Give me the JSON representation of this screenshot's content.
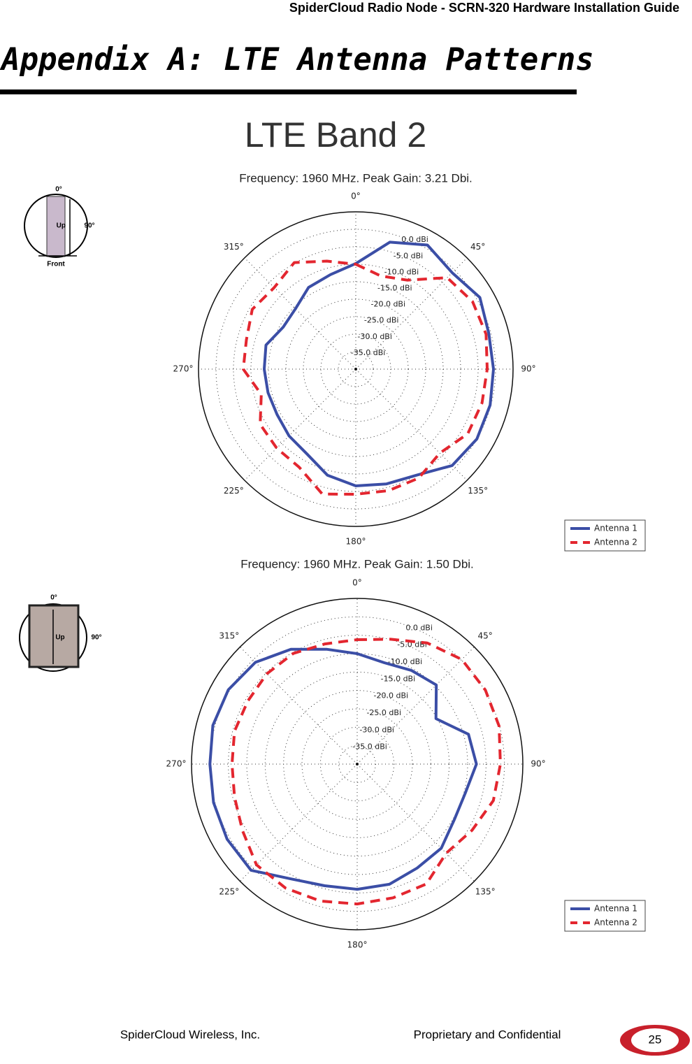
{
  "header": {
    "running_title": "SpiderCloud Radio Node - SCRN-320 Hardware Installation Guide",
    "heading": "Appendix A: LTE Antenna Patterns"
  },
  "section_title": "LTE Band 2",
  "icons": [
    {
      "top": "0°",
      "right": "90°",
      "arrow": "Up",
      "bottom": "Front"
    },
    {
      "top": "0°",
      "right": "90°",
      "arrow": "Up"
    }
  ],
  "chart_data": [
    {
      "type": "polar",
      "title": "Frequency: 1960 MHz. Peak Gain: 3.21 Dbi.",
      "theta": [
        0,
        15,
        30,
        45,
        60,
        75,
        90,
        105,
        120,
        135,
        150,
        165,
        180,
        195,
        210,
        225,
        240,
        255,
        270,
        285,
        300,
        315,
        330,
        345
      ],
      "thetaticks": [
        {
          "value": 0,
          "label": "0°"
        },
        {
          "value": 45,
          "label": "45°"
        },
        {
          "value": 90,
          "label": "90°"
        },
        {
          "value": 135,
          "label": "135°"
        },
        {
          "value": 180,
          "label": "180°"
        },
        {
          "value": 225,
          "label": "225°"
        },
        {
          "value": 270,
          "label": "270°"
        },
        {
          "value": 315,
          "label": "315°"
        }
      ],
      "rlim": [
        -40,
        5
      ],
      "rticks": [
        {
          "value": 0,
          "label": "0.0 dBi"
        },
        {
          "value": -5,
          "label": "-5.0 dBi"
        },
        {
          "value": -10,
          "label": "-10.0 dBi"
        },
        {
          "value": -15,
          "label": "-15.0 dBi"
        },
        {
          "value": -20,
          "label": "-20.0 dBi"
        },
        {
          "value": -25,
          "label": "-25.0 dBi"
        },
        {
          "value": -30,
          "label": "-30.0 dBi"
        },
        {
          "value": -35,
          "label": "-35.0 dBi"
        }
      ],
      "legend": "lower right",
      "series": [
        {
          "name": "Antenna 1",
          "color": "#3b4ea6",
          "dash": false,
          "values": [
            -9.8,
            -2.4,
            1,
            -1,
            1,
            -0.6,
            -0.6,
            -0.2,
            0,
            -1,
            -5,
            -6,
            -6.6,
            -8.6,
            -12,
            -13,
            -14,
            -14,
            -13.8,
            -13.4,
            -16,
            -15.6,
            -13,
            -12
          ]
        },
        {
          "name": "Antenna 2",
          "color": "#e3262f",
          "dash": true,
          "values": [
            -10,
            -12.4,
            -10.6,
            -3,
            -1.4,
            -1.4,
            -2.4,
            -2.6,
            -3,
            -6,
            -4,
            -4,
            -4.2,
            -3,
            -7.6,
            -8,
            -8.4,
            -12,
            -7.8,
            -7.6,
            -5.8,
            -7,
            -4.8,
            -8
          ]
        }
      ]
    },
    {
      "type": "polar",
      "title": "Frequency: 1960 MHz. Peak Gain: 1.50 Dbi.",
      "theta": [
        0,
        15,
        30,
        45,
        60,
        75,
        90,
        105,
        120,
        135,
        150,
        165,
        180,
        195,
        210,
        225,
        240,
        255,
        270,
        285,
        300,
        315,
        330,
        345
      ],
      "thetaticks": [
        {
          "value": 0,
          "label": "0°"
        },
        {
          "value": 45,
          "label": "45°"
        },
        {
          "value": 90,
          "label": "90°"
        },
        {
          "value": 135,
          "label": "135°"
        },
        {
          "value": 180,
          "label": "180°"
        },
        {
          "value": 225,
          "label": "225°"
        },
        {
          "value": 270,
          "label": "270°"
        },
        {
          "value": 315,
          "label": "315°"
        }
      ],
      "rlim": [
        -40,
        5
      ],
      "rticks": [
        {
          "value": 0,
          "label": "0.0 dBi"
        },
        {
          "value": -5,
          "label": "-5.0 dBi"
        },
        {
          "value": -10,
          "label": "-10.0 dBi"
        },
        {
          "value": -15,
          "label": "-15.0 dBi"
        },
        {
          "value": -20,
          "label": "-20.0 dBi"
        },
        {
          "value": -25,
          "label": "-25.0 dBi"
        },
        {
          "value": -30,
          "label": "-30.0 dBi"
        },
        {
          "value": -35,
          "label": "-35.0 dBi"
        }
      ],
      "legend": "lower right",
      "series": [
        {
          "name": "Antenna 1",
          "color": "#3b4ea6",
          "dash": false,
          "values": [
            -10,
            -11.5,
            -10.6,
            -9.6,
            -15.3,
            -8.7,
            -7.6,
            -9.6,
            -9.6,
            -7.7,
            -7.4,
            -6.2,
            -6,
            -5.8,
            -4,
            0.8,
            0.8,
            0.4,
            0,
            0.6,
            0.4,
            -0.9,
            -4,
            -7.7
          ]
        },
        {
          "name": "Antenna 2",
          "color": "#e3262f",
          "dash": true,
          "values": [
            -6.2,
            -4.9,
            -2,
            0.2,
            0.2,
            -0.1,
            -1.1,
            -1.7,
            -4,
            -5.8,
            -2.4,
            -2.4,
            -2,
            -1.5,
            -1.1,
            -1.3,
            -4,
            -5.5,
            -6,
            -5.5,
            -5.7,
            -5.3,
            -5.3,
            -6.2
          ]
        }
      ]
    }
  ],
  "footer": {
    "company": "SpiderCloud Wireless, Inc.",
    "notice": "Proprietary and Confidential",
    "page": "25"
  }
}
